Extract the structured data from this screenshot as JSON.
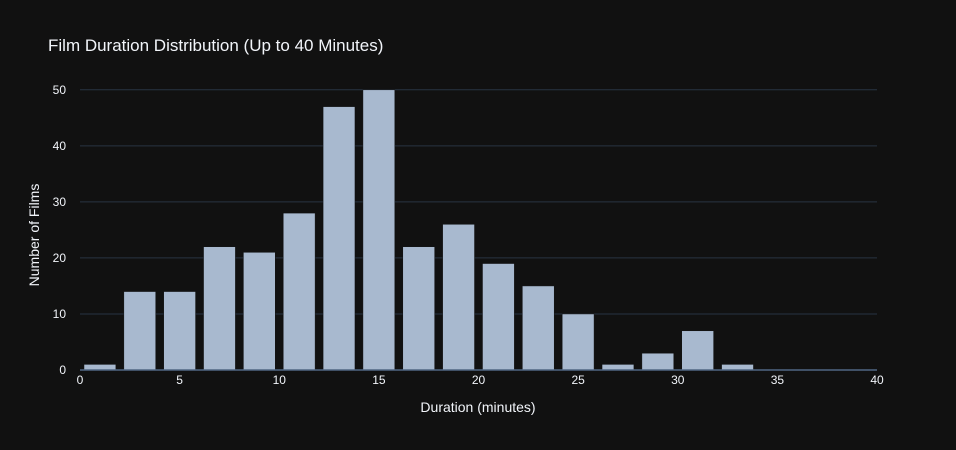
{
  "chart_data": {
    "type": "bar",
    "title": "Film Duration Distribution (Up to 40 Minutes)",
    "xlabel": "Duration (minutes)",
    "ylabel": "Number of Films",
    "xlim": [
      0,
      40
    ],
    "ylim": [
      0,
      53
    ],
    "x_ticks": [
      0,
      5,
      10,
      15,
      20,
      25,
      30,
      35,
      40
    ],
    "y_ticks": [
      0,
      10,
      20,
      30,
      40,
      50
    ],
    "bin_width": 2,
    "x": [
      1,
      3,
      5,
      7,
      9,
      11,
      13,
      15,
      17,
      19,
      21,
      23,
      25,
      27,
      29,
      31,
      33,
      35,
      37,
      39
    ],
    "values": [
      1,
      14,
      14,
      22,
      21,
      28,
      47,
      50,
      22,
      26,
      19,
      15,
      10,
      1,
      3,
      7,
      1,
      0,
      0,
      0
    ],
    "bar_color": "#a8b9cf",
    "background": "#111111",
    "grid": true
  }
}
